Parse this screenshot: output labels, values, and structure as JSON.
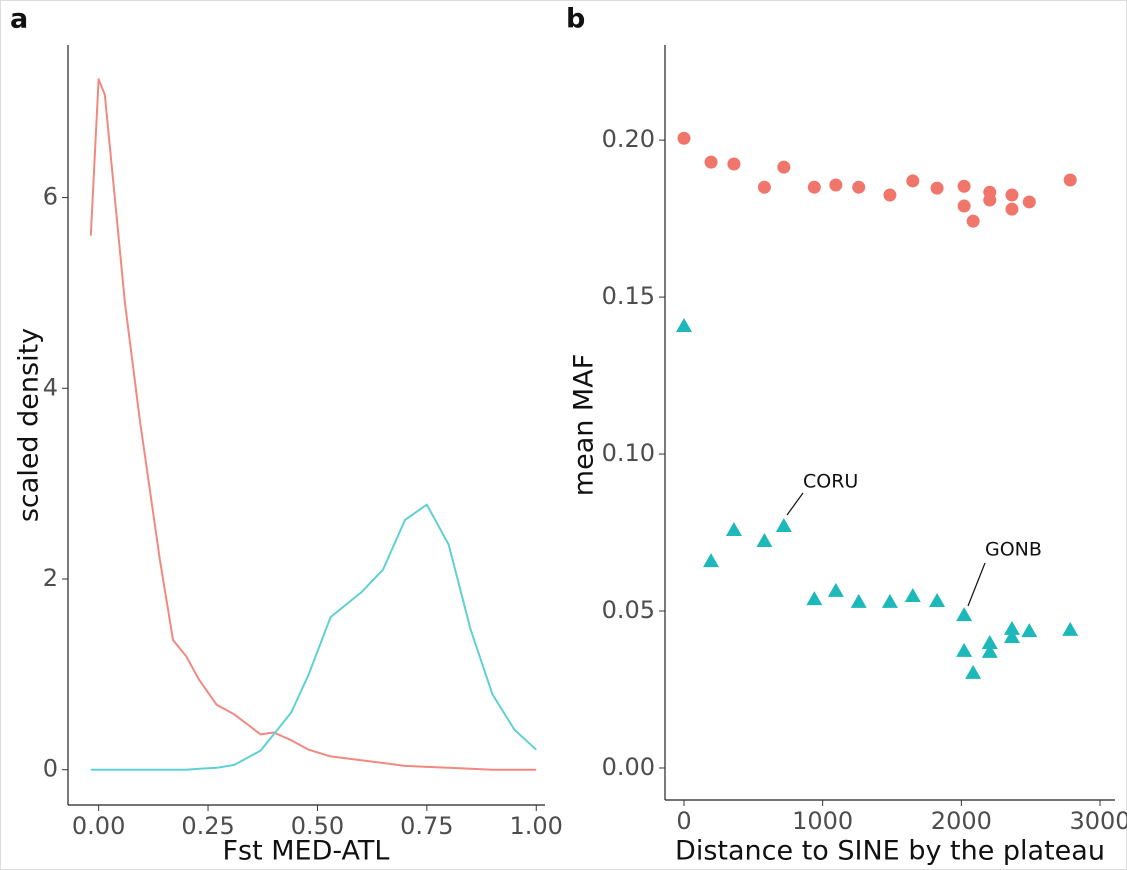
{
  "chart_data": [
    {
      "type": "line",
      "title": "a",
      "x_label": "Fst MED-ATL",
      "y_label": "scaled density",
      "x": [
        -0.018,
        0,
        0.014,
        0.037,
        0.06,
        0.094,
        0.14,
        0.17,
        0.2,
        0.23,
        0.27,
        0.31,
        0.37,
        0.4,
        0.44,
        0.48,
        0.53,
        0.6,
        0.65,
        0.7,
        0.75,
        0.8,
        0.85,
        0.9,
        0.95,
        1.0
      ],
      "series": [
        {
          "color": "#f08a80",
          "values": [
            5.6,
            7.24,
            7.08,
            6.0,
            4.9,
            3.67,
            2.2,
            1.36,
            1.19,
            0.94,
            0.68,
            0.58,
            0.37,
            0.39,
            0.31,
            0.21,
            0.14,
            0.1,
            0.07,
            0.04,
            0.03,
            0.02,
            0.01,
            0.0,
            0.0,
            0.0
          ]
        },
        {
          "color": "#5fd0d4",
          "values": [
            0,
            0,
            0,
            0,
            0,
            0,
            0,
            0,
            0,
            0.01,
            0.02,
            0.05,
            0.2,
            0.37,
            0.6,
            1.0,
            1.6,
            1.86,
            2.1,
            2.62,
            2.78,
            2.36,
            1.47,
            0.79,
            0.42,
            0.21
          ]
        }
      ],
      "xlim": [
        -0.07,
        1.02
      ],
      "ylim": [
        -0.37,
        7.6
      ],
      "xticks": [
        {
          "value": 0,
          "label": "0.00"
        },
        {
          "value": 0.25,
          "label": "0.25"
        },
        {
          "value": 0.5,
          "label": "0.50"
        },
        {
          "value": 0.75,
          "label": "0.75"
        },
        {
          "value": 1,
          "label": "1.00"
        }
      ],
      "yticks": [
        0,
        2,
        4,
        6
      ]
    },
    {
      "type": "scatter",
      "title": "b",
      "x_label": "Distance to SINE by the plateau",
      "y_label": "mean MAF",
      "x": [
        0,
        195,
        360,
        580,
        720,
        940,
        1095,
        1260,
        1485,
        1650,
        1825,
        2020,
        2020,
        2085,
        2205,
        2205,
        2365,
        2365,
        2490,
        2785
      ],
      "series": [
        {
          "color": "#f0766c",
          "marker": "circle",
          "values": [
            0.2006,
            0.193,
            0.1924,
            0.185,
            0.1914,
            0.185,
            0.1857,
            0.185,
            0.1825,
            0.187,
            0.1847,
            0.1853,
            0.179,
            0.1742,
            0.1834,
            0.1809,
            0.1825,
            0.178,
            0.1803,
            0.1873
          ]
        },
        {
          "color": "#1db8ba",
          "marker": "triangle",
          "values": [
            0.1408,
            0.0659,
            0.0758,
            0.0723,
            0.0771,
            0.0538,
            0.0564,
            0.0529,
            0.0529,
            0.0548,
            0.0532,
            0.0487,
            0.0373,
            0.0303,
            0.0398,
            0.037,
            0.0443,
            0.0417,
            0.0436,
            0.044
          ]
        }
      ],
      "annotations": [
        "CORU",
        "GONB"
      ],
      "xlim": [
        -137,
        3108
      ],
      "ylim": [
        -0.0102,
        0.2303
      ],
      "xticks": [
        0,
        1000,
        2000,
        3000
      ],
      "yticks": [
        {
          "value": 0,
          "label": "0.00"
        },
        {
          "value": 0.05,
          "label": "0.05"
        },
        {
          "value": 0.1,
          "label": "0.10"
        },
        {
          "value": 0.15,
          "label": "0.15"
        },
        {
          "value": 0.2,
          "label": "0.20"
        }
      ]
    }
  ]
}
